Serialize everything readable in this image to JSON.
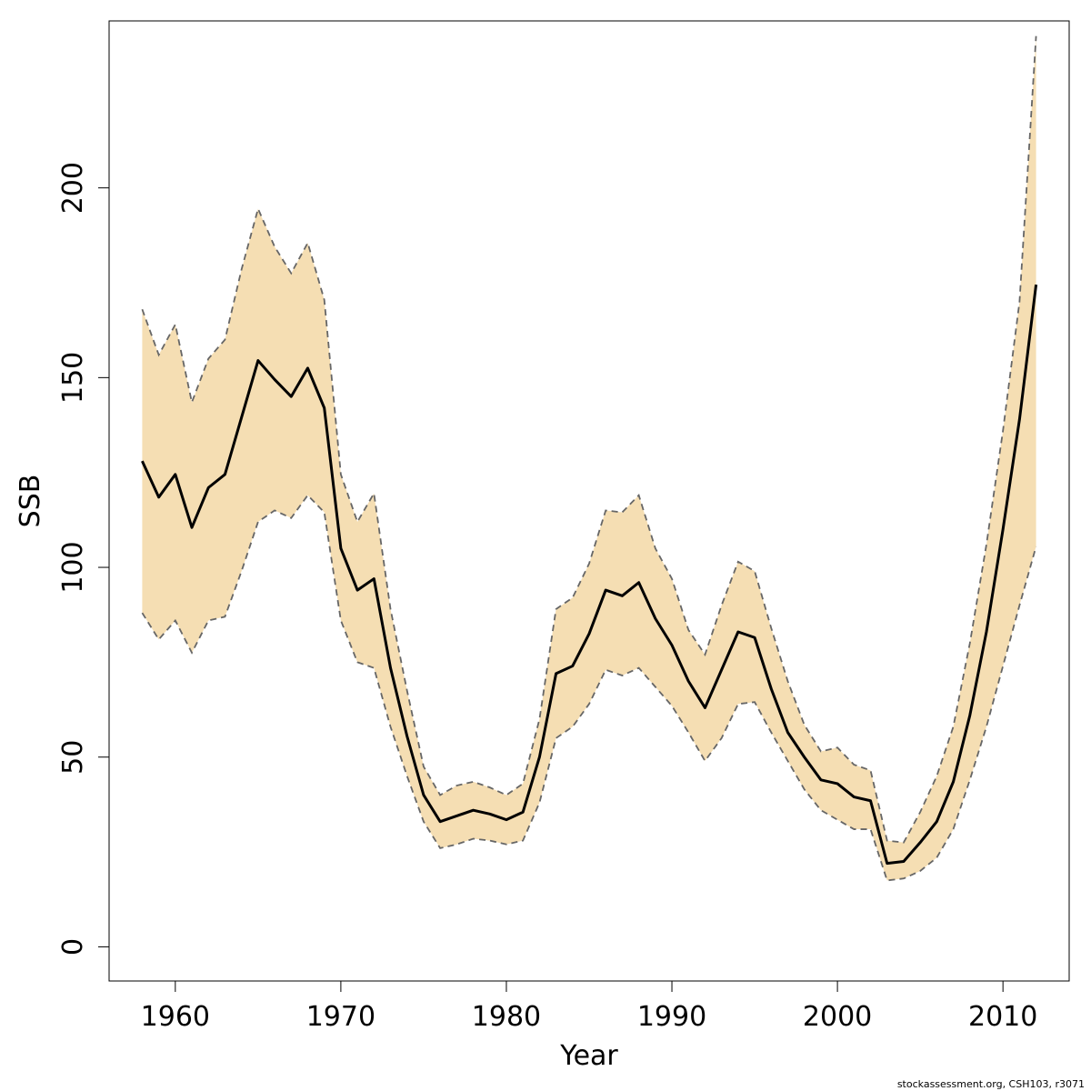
{
  "chart_data": {
    "type": "line",
    "title": "",
    "xlabel": "Year",
    "ylabel": "SSB",
    "xlim": [
      1956,
      2014
    ],
    "ylim": [
      -9,
      244
    ],
    "x_ticks": [
      1960,
      1970,
      1980,
      1990,
      2000,
      2010
    ],
    "y_ticks": [
      0,
      50,
      100,
      150,
      200
    ],
    "colors": {
      "band": "#f5deb3",
      "line": "#000000",
      "bound": "#666666",
      "frame": "#000000"
    },
    "x": [
      1958,
      1959,
      1960,
      1961,
      1962,
      1963,
      1964,
      1965,
      1966,
      1967,
      1968,
      1969,
      1970,
      1971,
      1972,
      1973,
      1974,
      1975,
      1976,
      1977,
      1978,
      1979,
      1980,
      1981,
      1982,
      1983,
      1984,
      1985,
      1986,
      1987,
      1988,
      1989,
      1990,
      1991,
      1992,
      1993,
      1994,
      1995,
      1996,
      1997,
      1998,
      1999,
      2000,
      2001,
      2002,
      2003,
      2004,
      2005,
      2006,
      2007,
      2008,
      2009,
      2010,
      2011,
      2012
    ],
    "series": [
      {
        "name": "SSB estimate",
        "values": [
          128,
          118.5,
          124.5,
          110.5,
          121,
          124.5,
          139.5,
          154.5,
          149.5,
          145,
          152.5,
          142,
          105,
          94,
          97,
          73.5,
          55.5,
          40,
          33,
          34.5,
          36,
          35,
          33.5,
          35.5,
          50,
          72,
          74,
          82.5,
          94,
          92.5,
          96,
          86.5,
          79.5,
          70,
          63,
          73,
          83,
          81.5,
          68,
          56.5,
          50,
          44,
          43,
          39.5,
          38.5,
          22,
          22.5,
          27.5,
          33,
          43.5,
          61,
          83,
          110,
          139,
          174.5
        ]
      },
      {
        "name": "Upper bound",
        "values": [
          168,
          156,
          164,
          143.5,
          155,
          160,
          178.5,
          194.5,
          184.5,
          177.5,
          185.5,
          170.5,
          124.5,
          112,
          119.5,
          89,
          67.5,
          47.5,
          40,
          42.5,
          43.5,
          42,
          40,
          43,
          60,
          89,
          92,
          101,
          115,
          114.5,
          119,
          105,
          97,
          83.5,
          77,
          90,
          101.5,
          99,
          84,
          70,
          58.5,
          51.5,
          52.5,
          48,
          46.5,
          28,
          27.5,
          35.5,
          45,
          58,
          80,
          106,
          136,
          170,
          240
        ]
      },
      {
        "name": "Lower bound",
        "values": [
          88,
          81,
          86,
          77.5,
          86,
          87,
          99,
          112,
          115,
          113,
          119,
          114.5,
          86,
          75,
          73.5,
          58,
          45,
          33,
          26,
          27,
          28.5,
          28,
          27,
          28,
          38,
          55,
          58,
          64,
          73,
          71.5,
          73.5,
          68.5,
          63.5,
          56.5,
          49,
          55,
          64,
          64.5,
          56.5,
          49,
          41.5,
          36,
          33.5,
          31,
          31,
          17.5,
          18,
          20,
          23.5,
          31,
          44,
          58,
          74,
          90,
          105.5
        ]
      }
    ],
    "footer": "stockassessment.org, CSH103, r3071"
  }
}
